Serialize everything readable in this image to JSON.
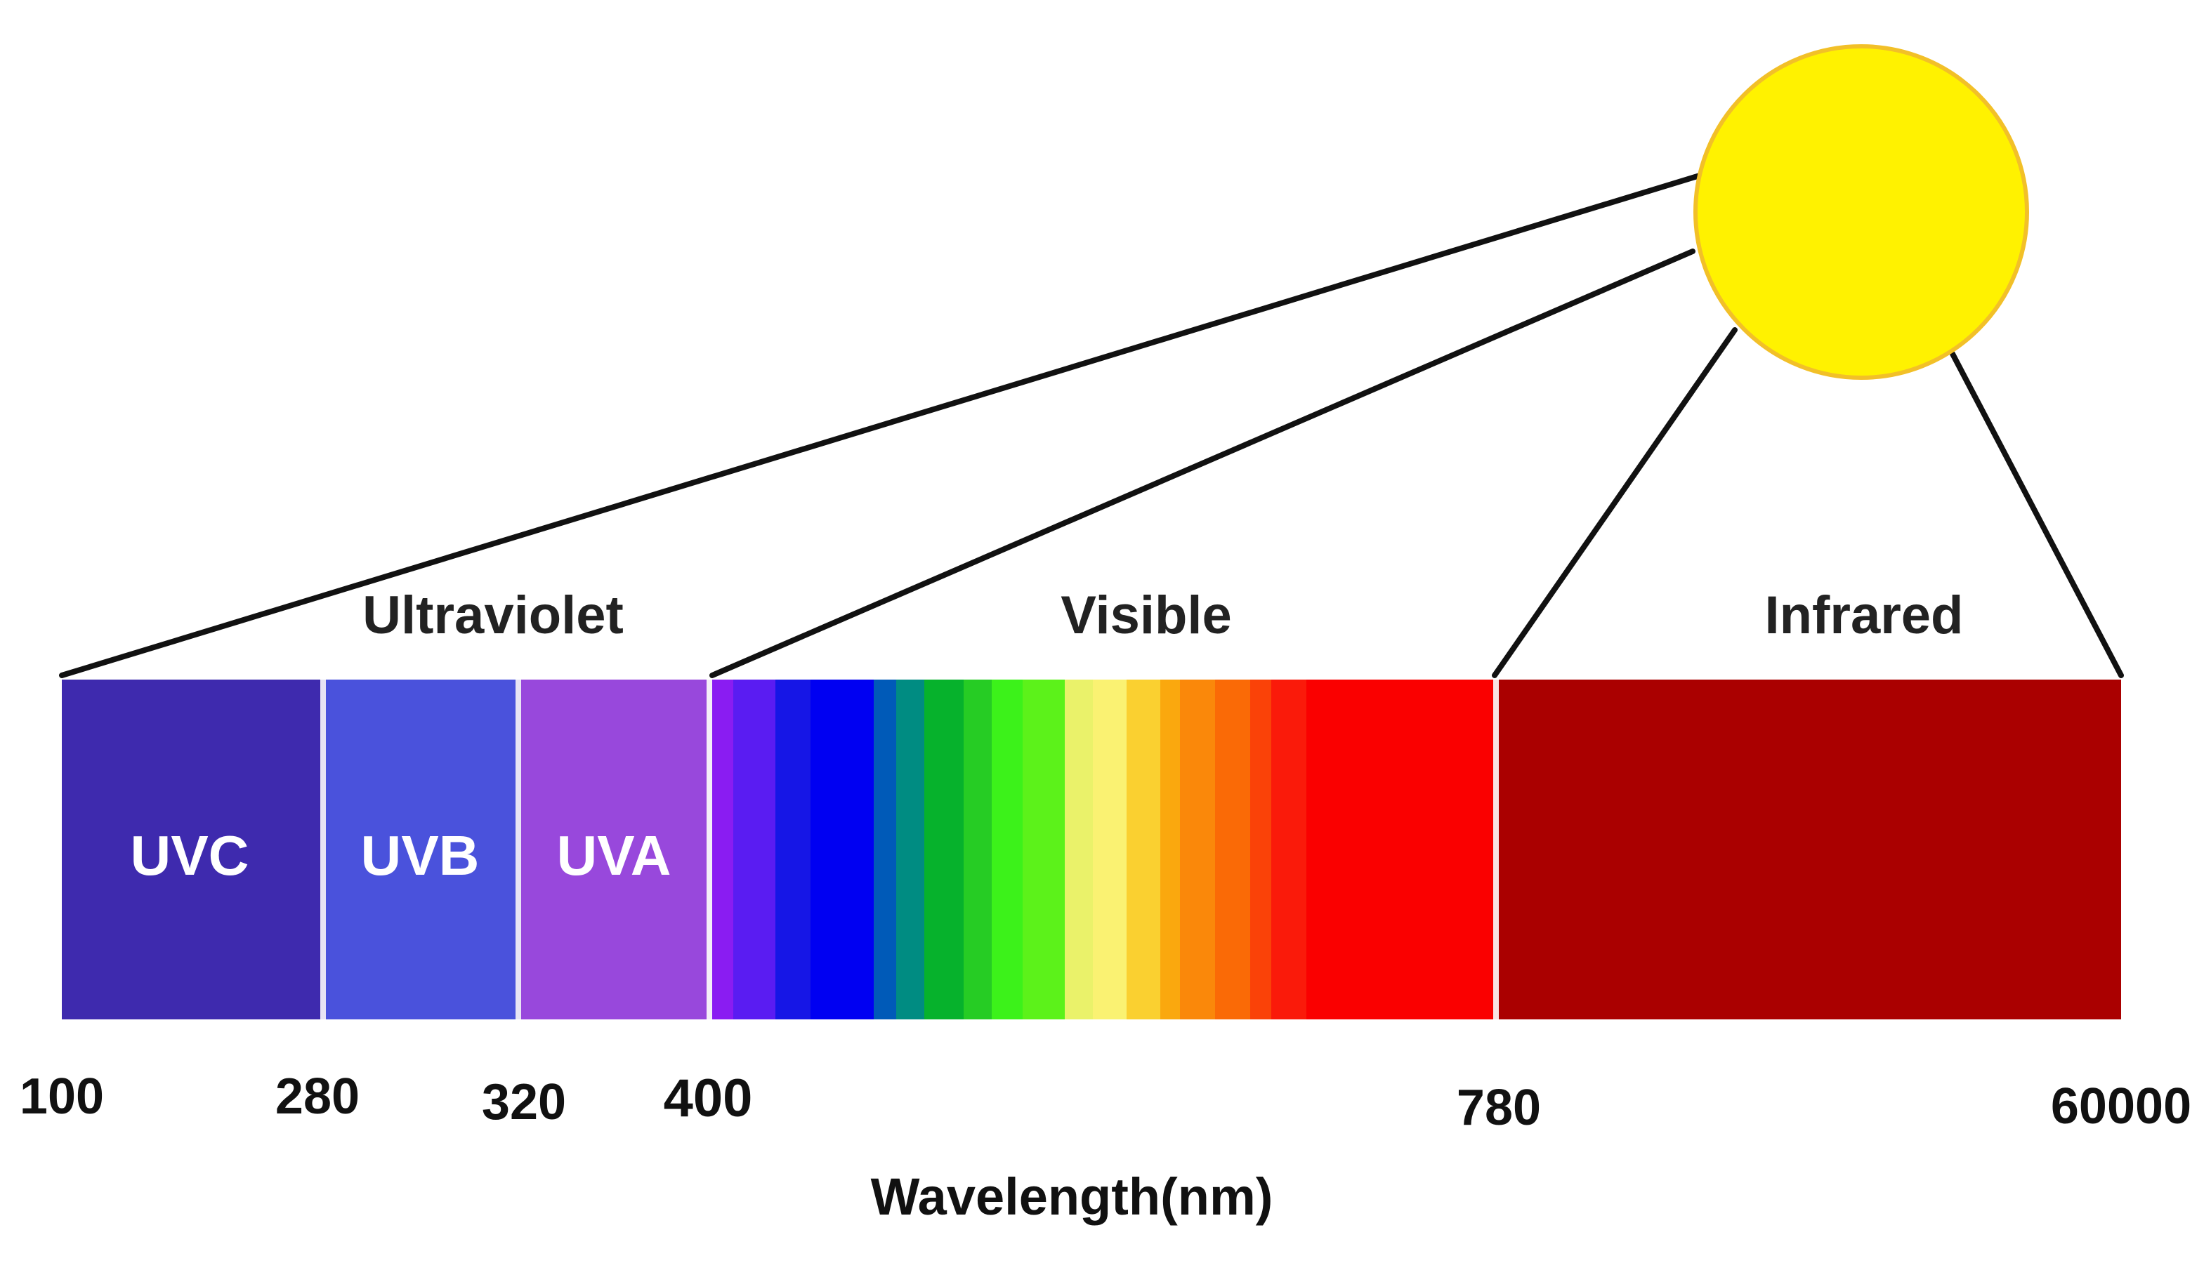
{
  "regions": [
    {
      "key": "uv",
      "label": "Ultraviolet"
    },
    {
      "key": "visible",
      "label": "Visible"
    },
    {
      "key": "ir",
      "label": "Infrared"
    }
  ],
  "uv_bands": [
    {
      "key": "uvc",
      "label": "UVC",
      "color": "#3E2AAE"
    },
    {
      "key": "uvb",
      "label": "UVB",
      "color": "#4A52DC"
    },
    {
      "key": "uva",
      "label": "UVA",
      "color": "#9848DC"
    }
  ],
  "visible_colors": [
    "#8A1CF2",
    "#5A1CF2",
    "#1616E6",
    "#0000F2",
    "#005AB8",
    "#008C82",
    "#06B22C",
    "#26CC24",
    "#3CF21A",
    "#5CF21A",
    "#EAF26A",
    "#FAF272",
    "#FAD030",
    "#FAA80E",
    "#FA880A",
    "#FA6A06",
    "#FA4208",
    "#FA1A0A",
    "#FA0000"
  ],
  "infrared_color": "#AA0000",
  "sun_color": "#FFF200",
  "sun_outline_color": "#F2C028",
  "wavelengths": [
    "100",
    "280",
    "320",
    "400",
    "780",
    "60000"
  ],
  "axis_title": "Wavelength(nm)"
}
